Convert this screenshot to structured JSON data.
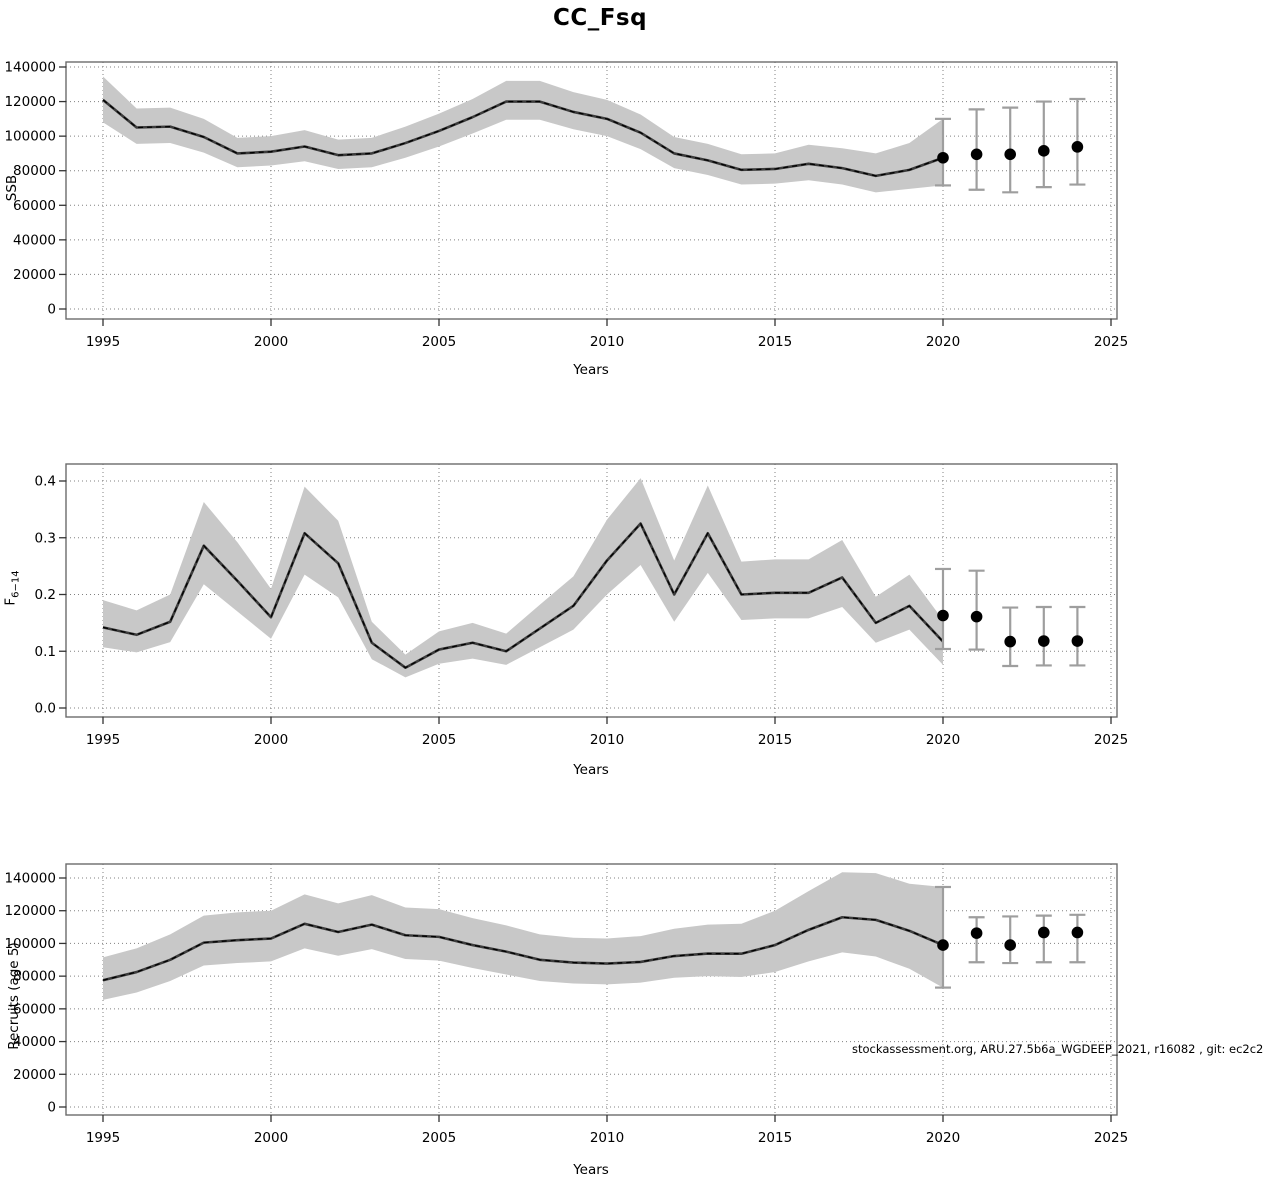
{
  "title": "CC_Fsq",
  "watermark": "stockassessment.org, ARU.27.5b6a_WGDEEP_2021, r16082 , git: ec2c2",
  "colors": {
    "band": "#c8c8c8",
    "line": "#3c3c3c",
    "line_dash": "#000000",
    "error_bar": "#9e9e9e",
    "forecast_dot": "#000000",
    "grid": "#808080",
    "box": "#6b6b6b",
    "tick": "#333333"
  },
  "chart_data": [
    {
      "type": "line",
      "name": "ssb",
      "ylabel_main": "SSB",
      "ylabel_sub": "",
      "xlabel": "Years",
      "x_ticks": [
        1995,
        2000,
        2005,
        2010,
        2015,
        2020,
        2025
      ],
      "xlim": [
        1994,
        2025.2
      ],
      "y_tick_values": [
        0,
        20000,
        40000,
        60000,
        80000,
        100000,
        120000,
        140000
      ],
      "y_tick_labels": [
        "0",
        "20000",
        "40000",
        "60000",
        "80000",
        "100000",
        "120000",
        "140000"
      ],
      "ylim": [
        0,
        140000
      ],
      "grid": true,
      "years": [
        1995,
        1996,
        1997,
        1998,
        1999,
        2000,
        2001,
        2002,
        2003,
        2004,
        2005,
        2006,
        2007,
        2008,
        2009,
        2010,
        2011,
        2012,
        2013,
        2014,
        2015,
        2016,
        2017,
        2018,
        2019,
        2020
      ],
      "values": [
        121000,
        105000,
        105500,
        99500,
        90000,
        91000,
        94000,
        89000,
        90000,
        96000,
        103000,
        111000,
        120000,
        120000,
        114000,
        110000,
        102000,
        90000,
        86000,
        80500,
        81000,
        84000,
        81500,
        77000,
        80500,
        87500
      ],
      "band_lower": [
        108000,
        95500,
        96000,
        90500,
        82000,
        83000,
        85500,
        81000,
        82000,
        87500,
        94000,
        101500,
        109500,
        109500,
        104000,
        100000,
        92500,
        81500,
        77500,
        72000,
        72500,
        74500,
        72000,
        67500,
        69500,
        71500
      ],
      "band_upper": [
        134500,
        116000,
        116500,
        110000,
        99000,
        100000,
        103500,
        98000,
        99000,
        105500,
        113000,
        121500,
        132000,
        132000,
        125500,
        121000,
        112500,
        99500,
        95500,
        89500,
        90000,
        95000,
        93000,
        90000,
        96000,
        110000
      ],
      "forecast": {
        "years": [
          2020,
          2021,
          2022,
          2023,
          2024
        ],
        "values": [
          87500,
          89500,
          89500,
          91500,
          93800
        ],
        "lower": [
          71500,
          69000,
          67500,
          70500,
          72000
        ],
        "upper": [
          110000,
          115500,
          116500,
          120000,
          121500
        ]
      }
    },
    {
      "type": "line",
      "name": "f",
      "ylabel_main": "F",
      "ylabel_sub": "6−14",
      "xlabel": "Years",
      "x_ticks": [
        1995,
        2000,
        2005,
        2010,
        2015,
        2020,
        2025
      ],
      "xlim": [
        1994,
        2025.2
      ],
      "y_tick_values": [
        0,
        0.1,
        0.2,
        0.3,
        0.4
      ],
      "y_tick_labels": [
        "0.0",
        "0.1",
        "0.2",
        "0.3",
        "0.4"
      ],
      "ylim": [
        0,
        0.4
      ],
      "grid": true,
      "years": [
        1995,
        1996,
        1997,
        1998,
        1999,
        2000,
        2001,
        2002,
        2003,
        2004,
        2005,
        2006,
        2007,
        2008,
        2009,
        2010,
        2011,
        2012,
        2013,
        2014,
        2015,
        2016,
        2017,
        2018,
        2019,
        2020
      ],
      "values": [
        0.142,
        0.129,
        0.152,
        0.286,
        0.224,
        0.16,
        0.308,
        0.255,
        0.115,
        0.071,
        0.103,
        0.115,
        0.1,
        0.14,
        0.18,
        0.26,
        0.325,
        0.2,
        0.308,
        0.2,
        0.203,
        0.203,
        0.23,
        0.15,
        0.18,
        0.117
      ],
      "band_lower": [
        0.107,
        0.098,
        0.116,
        0.218,
        0.17,
        0.122,
        0.235,
        0.195,
        0.086,
        0.054,
        0.078,
        0.087,
        0.076,
        0.107,
        0.138,
        0.2,
        0.252,
        0.152,
        0.238,
        0.155,
        0.158,
        0.158,
        0.178,
        0.115,
        0.138,
        0.076
      ],
      "band_upper": [
        0.19,
        0.172,
        0.2,
        0.363,
        0.292,
        0.21,
        0.39,
        0.33,
        0.152,
        0.094,
        0.135,
        0.15,
        0.131,
        0.182,
        0.232,
        0.332,
        0.405,
        0.26,
        0.392,
        0.258,
        0.262,
        0.262,
        0.296,
        0.196,
        0.235,
        0.155
      ],
      "forecast": {
        "years": [
          2020,
          2021,
          2022,
          2023,
          2024
        ],
        "values": [
          0.163,
          0.161,
          0.117,
          0.118,
          0.118
        ],
        "lower": [
          0.104,
          0.103,
          0.074,
          0.075,
          0.075
        ],
        "upper": [
          0.245,
          0.242,
          0.177,
          0.178,
          0.178
        ]
      }
    },
    {
      "type": "line",
      "name": "recruits",
      "ylabel_main": "Recruits (age 5)",
      "ylabel_sub": "",
      "xlabel": "Years",
      "x_ticks": [
        1995,
        2000,
        2005,
        2010,
        2015,
        2020,
        2025
      ],
      "xlim": [
        1994,
        2025.2
      ],
      "y_tick_values": [
        0,
        20000,
        40000,
        60000,
        80000,
        100000,
        120000,
        140000
      ],
      "y_tick_labels": [
        "0",
        "20000",
        "40000",
        "60000",
        "80000",
        "100000",
        "120000",
        "140000"
      ],
      "ylim": [
        0,
        140000
      ],
      "grid": true,
      "years": [
        1995,
        1996,
        1997,
        1998,
        1999,
        2000,
        2001,
        2002,
        2003,
        2004,
        2005,
        2006,
        2007,
        2008,
        2009,
        2010,
        2011,
        2012,
        2013,
        2014,
        2015,
        2016,
        2017,
        2018,
        2019,
        2020
      ],
      "values": [
        77500,
        82500,
        90000,
        100500,
        102000,
        103000,
        112000,
        107000,
        111500,
        105000,
        104000,
        99000,
        95000,
        90000,
        88300,
        87700,
        88700,
        92300,
        93800,
        93700,
        99000,
        108300,
        116000,
        114400,
        107700,
        99000
      ],
      "band_lower": [
        65500,
        70000,
        77000,
        86500,
        88000,
        89000,
        97000,
        92500,
        96500,
        90500,
        89500,
        85000,
        81000,
        77000,
        75500,
        75000,
        76000,
        79000,
        80000,
        79500,
        82500,
        89000,
        94500,
        92000,
        84500,
        73000
      ],
      "band_upper": [
        91500,
        97000,
        105500,
        117000,
        119000,
        120000,
        130000,
        124500,
        129500,
        122000,
        121000,
        115500,
        111000,
        105500,
        103500,
        103000,
        104500,
        109000,
        111500,
        112000,
        120000,
        132000,
        143500,
        143000,
        136500,
        134500
      ],
      "forecast": {
        "years": [
          2020,
          2021,
          2022,
          2023,
          2024
        ],
        "values": [
          99000,
          106300,
          99000,
          106700,
          106700
        ],
        "lower": [
          73000,
          88500,
          88000,
          88500,
          88500
        ],
        "upper": [
          134500,
          116000,
          116500,
          117000,
          117500
        ]
      }
    }
  ]
}
